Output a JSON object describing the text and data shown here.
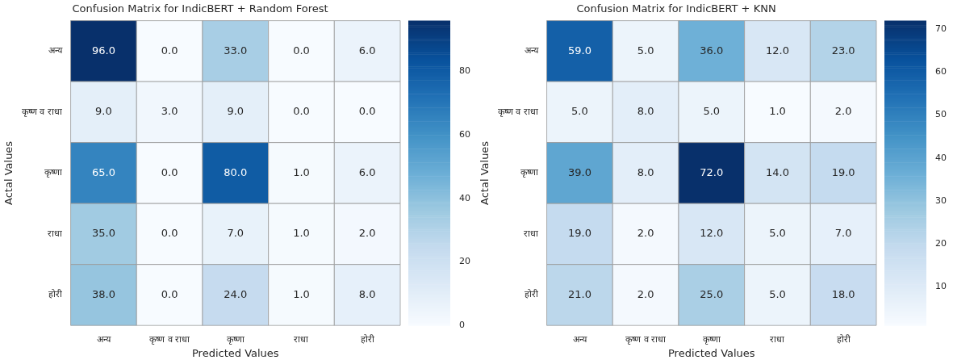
{
  "chart_data": [
    {
      "type": "heatmap",
      "title": "Confusion Matrix for IndicBERT + Random Forest",
      "xlabel": "Predicted Values",
      "ylabel": "Actal Values",
      "categories": [
        "अन्य",
        "कृष्ण व राधा",
        "कृष्णा",
        "राधा",
        "होरी"
      ],
      "y_categories": [
        "अन्य",
        "कृष्ण व राधा",
        "कृष्णा",
        "राधा",
        "होरी"
      ],
      "cells": [
        [
          96,
          0,
          33,
          0,
          6
        ],
        [
          9,
          3,
          9,
          0,
          0
        ],
        [
          65,
          0,
          80,
          1,
          6
        ],
        [
          35,
          0,
          7,
          1,
          2
        ],
        [
          38,
          0,
          24,
          1,
          8
        ]
      ],
      "cell_labels": [
        [
          "96.0",
          "0.0",
          "33.0",
          "0.0",
          "6.0"
        ],
        [
          "9.0",
          "3.0",
          "9.0",
          "0.0",
          "0.0"
        ],
        [
          "65.0",
          "0.0",
          "80.0",
          "1.0",
          "6.0"
        ],
        [
          "35.0",
          "0.0",
          "7.0",
          "1.0",
          "2.0"
        ],
        [
          "38.0",
          "0.0",
          "24.0",
          "1.0",
          "8.0"
        ]
      ],
      "clim": [
        0,
        96
      ],
      "cticks": [
        0,
        20,
        40,
        60,
        80
      ]
    },
    {
      "type": "heatmap",
      "title": "Confusion Matrix for IndicBERT + KNN",
      "xlabel": "Predicted Values",
      "ylabel": "Actal Values",
      "categories": [
        "अन्य",
        "कृष्ण व राधा",
        "कृष्णा",
        "राधा",
        "होरी"
      ],
      "y_categories": [
        "अन्य",
        "कृष्ण व राधा",
        "कृष्णा",
        "राधा",
        "होरी"
      ],
      "cells": [
        [
          59,
          5,
          36,
          12,
          23
        ],
        [
          5,
          8,
          5,
          1,
          2
        ],
        [
          39,
          8,
          72,
          14,
          19
        ],
        [
          19,
          2,
          12,
          5,
          7
        ],
        [
          21,
          2,
          25,
          5,
          18
        ]
      ],
      "cell_labels": [
        [
          "59.0",
          "5.0",
          "36.0",
          "12.0",
          "23.0"
        ],
        [
          "5.0",
          "8.0",
          "5.0",
          "1.0",
          "2.0"
        ],
        [
          "39.0",
          "8.0",
          "72.0",
          "14.0",
          "19.0"
        ],
        [
          "19.0",
          "2.0",
          "12.0",
          "5.0",
          "7.0"
        ],
        [
          "21.0",
          "2.0",
          "25.0",
          "5.0",
          "18.0"
        ]
      ],
      "clim": [
        1,
        72
      ],
      "cticks": [
        10,
        20,
        30,
        40,
        50,
        60,
        70
      ]
    }
  ]
}
